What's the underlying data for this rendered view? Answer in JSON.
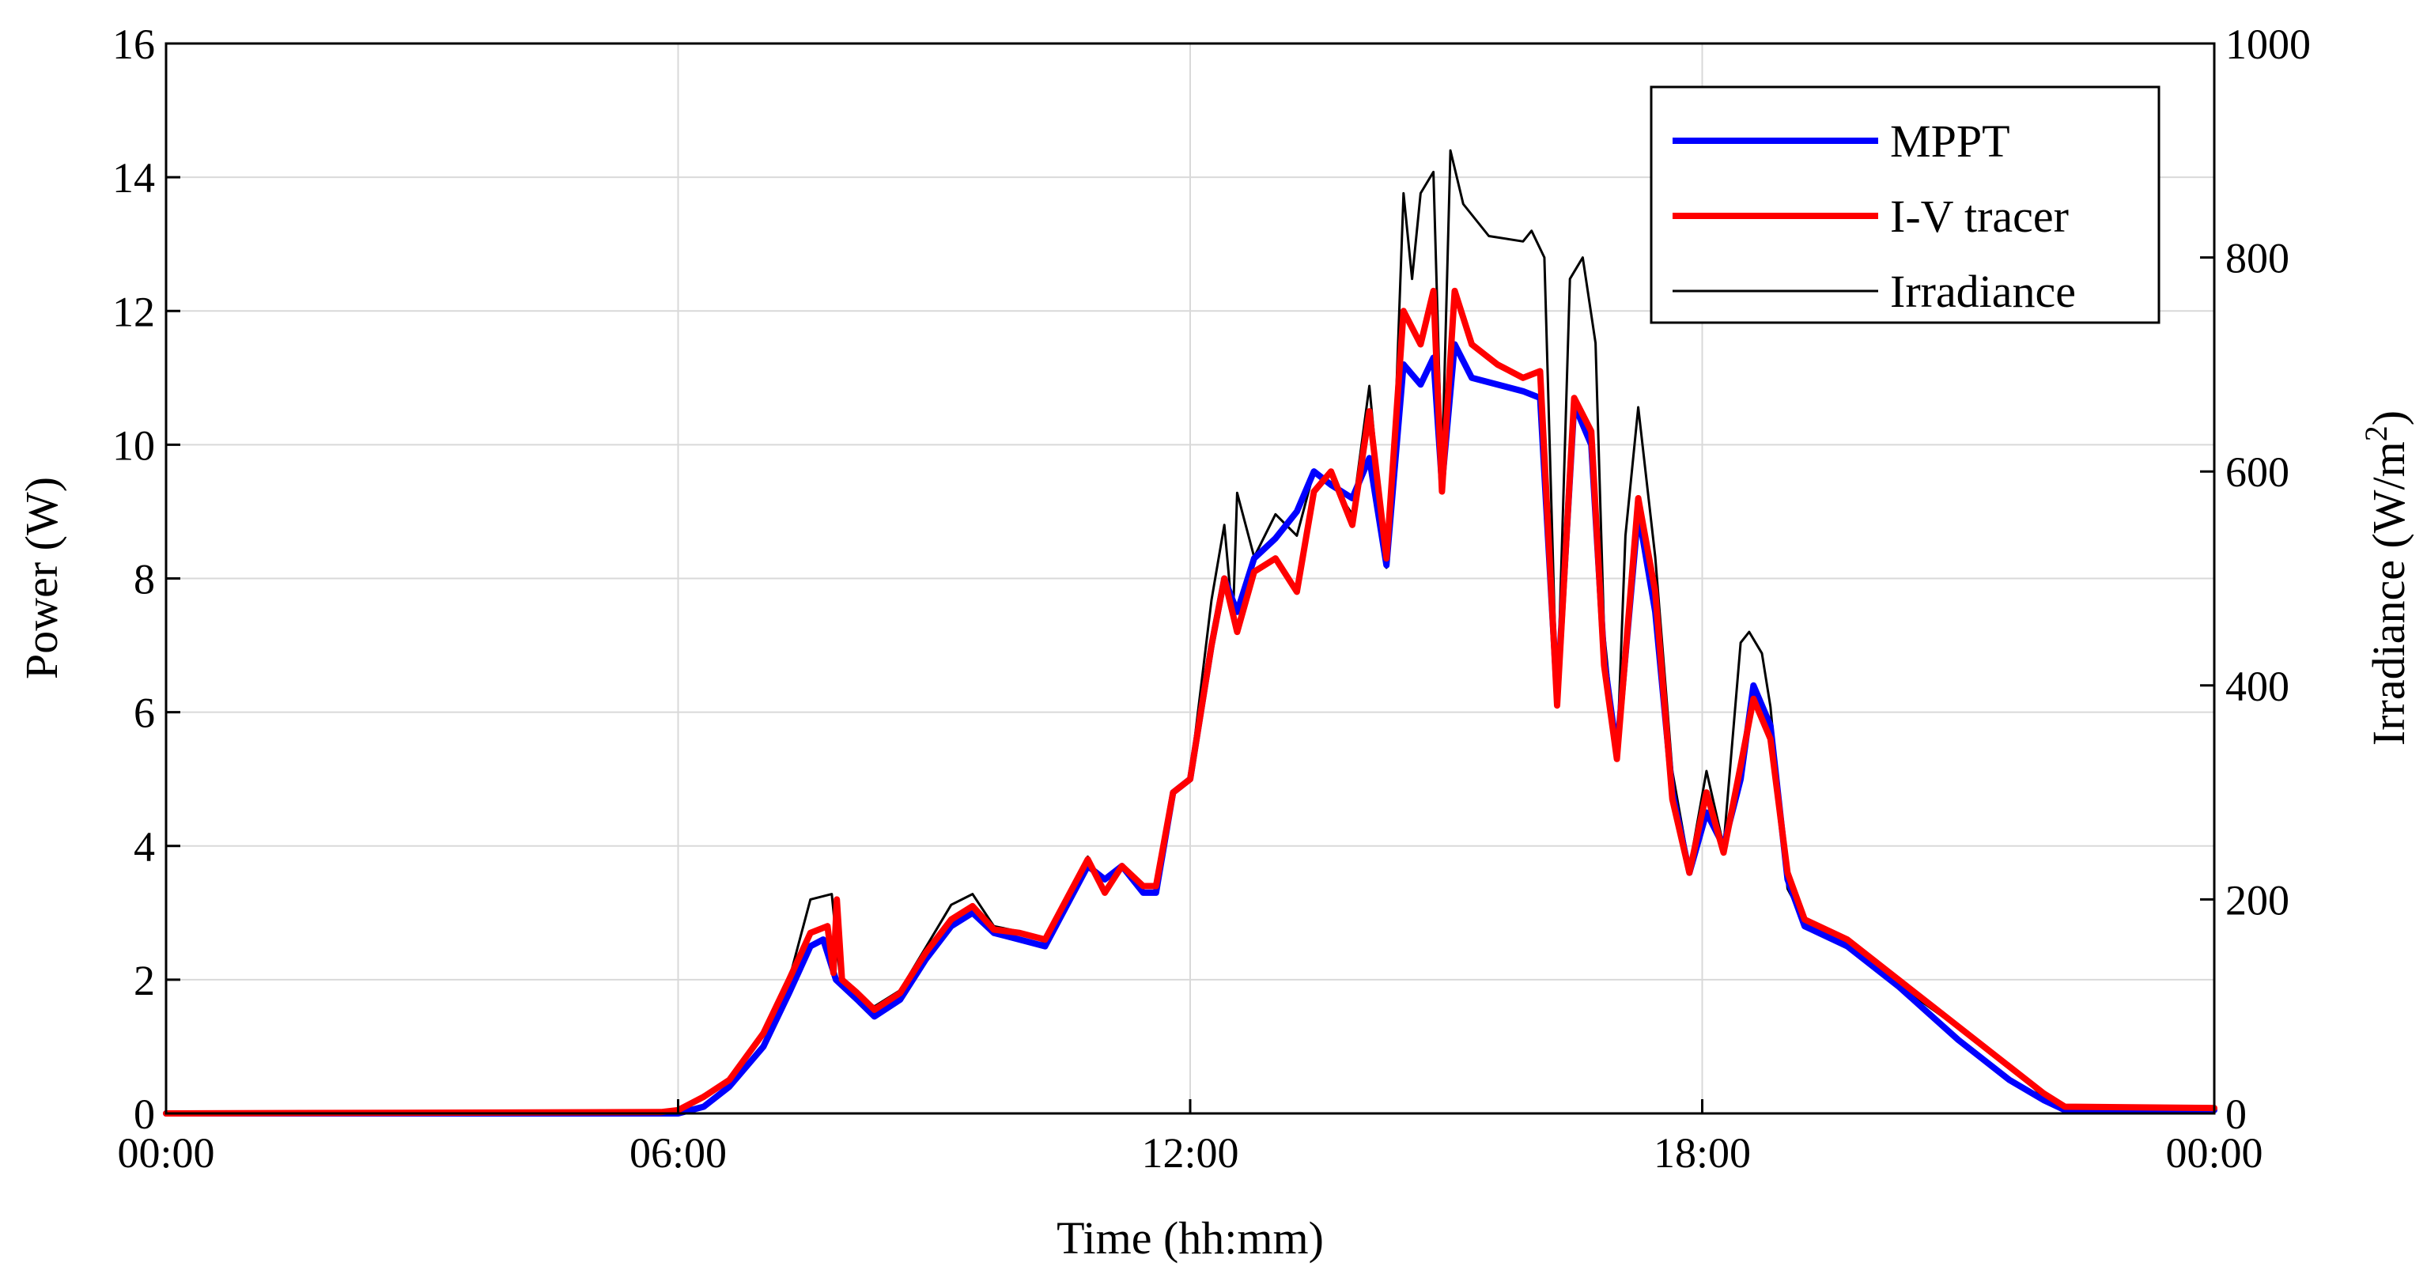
{
  "chart_data": {
    "type": "line",
    "title": "",
    "xlabel": "Time (hh:mm)",
    "ylabel_left": "Power (W)",
    "ylabel_right_base": "Irradiance (W/m",
    "ylabel_right_sup": "2",
    "ylabel_right_close": ")",
    "xlim_hours": [
      0,
      24
    ],
    "x_ticks": [
      {
        "hour": 0,
        "label": "00:00"
      },
      {
        "hour": 6,
        "label": "06:00"
      },
      {
        "hour": 12,
        "label": "12:00"
      },
      {
        "hour": 18,
        "label": "18:00"
      },
      {
        "hour": 24,
        "label": "00:00"
      }
    ],
    "ylim_left": [
      0,
      16
    ],
    "y_ticks_left": [
      "0",
      "2",
      "4",
      "6",
      "8",
      "10",
      "12",
      "14",
      "16"
    ],
    "ylim_right": [
      0,
      1000
    ],
    "y_ticks_right": [
      "0",
      "200",
      "400",
      "600",
      "800",
      "1000"
    ],
    "grid": true,
    "legend_position": "top-right",
    "series": [
      {
        "name": "MPPT",
        "axis": "left",
        "color": "#0000ff",
        "points": [
          [
            0,
            0
          ],
          [
            6,
            0
          ],
          [
            6.3,
            0.1
          ],
          [
            6.6,
            0.4
          ],
          [
            7.0,
            1.0
          ],
          [
            7.3,
            1.8
          ],
          [
            7.55,
            2.5
          ],
          [
            7.7,
            2.6
          ],
          [
            7.85,
            2.0
          ],
          [
            8.1,
            1.7
          ],
          [
            8.3,
            1.45
          ],
          [
            8.6,
            1.7
          ],
          [
            8.9,
            2.3
          ],
          [
            9.2,
            2.8
          ],
          [
            9.45,
            3.0
          ],
          [
            9.7,
            2.7
          ],
          [
            10.0,
            2.6
          ],
          [
            10.3,
            2.5
          ],
          [
            10.55,
            3.1
          ],
          [
            10.8,
            3.7
          ],
          [
            11.0,
            3.5
          ],
          [
            11.2,
            3.7
          ],
          [
            11.45,
            3.3
          ],
          [
            11.6,
            3.3
          ],
          [
            11.8,
            4.8
          ],
          [
            12.0,
            5.0
          ],
          [
            12.25,
            7.0
          ],
          [
            12.4,
            8.0
          ],
          [
            12.55,
            7.5
          ],
          [
            12.75,
            8.3
          ],
          [
            13.0,
            8.6
          ],
          [
            13.25,
            9.0
          ],
          [
            13.45,
            9.6
          ],
          [
            13.65,
            9.4
          ],
          [
            13.9,
            9.2
          ],
          [
            14.1,
            9.8
          ],
          [
            14.3,
            8.2
          ],
          [
            14.5,
            11.2
          ],
          [
            14.7,
            10.9
          ],
          [
            14.85,
            11.3
          ],
          [
            14.95,
            9.4
          ],
          [
            15.1,
            11.5
          ],
          [
            15.3,
            11.0
          ],
          [
            15.6,
            10.9
          ],
          [
            15.9,
            10.8
          ],
          [
            16.1,
            10.7
          ],
          [
            16.3,
            6.2
          ],
          [
            16.5,
            10.6
          ],
          [
            16.7,
            10.0
          ],
          [
            16.85,
            6.8
          ],
          [
            17.0,
            5.4
          ],
          [
            17.25,
            9.0
          ],
          [
            17.45,
            7.5
          ],
          [
            17.65,
            4.8
          ],
          [
            17.85,
            3.6
          ],
          [
            18.05,
            4.5
          ],
          [
            18.25,
            4.0
          ],
          [
            18.45,
            5.0
          ],
          [
            18.6,
            6.4
          ],
          [
            18.8,
            5.8
          ],
          [
            19.0,
            3.5
          ],
          [
            19.2,
            2.8
          ],
          [
            19.7,
            2.5
          ],
          [
            20.3,
            1.9
          ],
          [
            21.0,
            1.1
          ],
          [
            21.6,
            0.5
          ],
          [
            22.0,
            0.2
          ],
          [
            22.25,
            0.05
          ],
          [
            24,
            0.05
          ]
        ]
      },
      {
        "name": "I-V tracer",
        "axis": "left",
        "color": "#ff0000",
        "points": [
          [
            0,
            0
          ],
          [
            5.8,
            0.02
          ],
          [
            6.0,
            0.05
          ],
          [
            6.3,
            0.25
          ],
          [
            6.6,
            0.5
          ],
          [
            7.0,
            1.2
          ],
          [
            7.3,
            2.0
          ],
          [
            7.55,
            2.7
          ],
          [
            7.75,
            2.8
          ],
          [
            7.82,
            2.1
          ],
          [
            7.86,
            3.2
          ],
          [
            7.92,
            2.0
          ],
          [
            8.1,
            1.8
          ],
          [
            8.3,
            1.55
          ],
          [
            8.6,
            1.8
          ],
          [
            8.9,
            2.4
          ],
          [
            9.2,
            2.9
          ],
          [
            9.45,
            3.1
          ],
          [
            9.7,
            2.75
          ],
          [
            10.0,
            2.7
          ],
          [
            10.3,
            2.6
          ],
          [
            10.55,
            3.2
          ],
          [
            10.8,
            3.8
          ],
          [
            11.0,
            3.3
          ],
          [
            11.2,
            3.7
          ],
          [
            11.45,
            3.4
          ],
          [
            11.6,
            3.4
          ],
          [
            11.8,
            4.8
          ],
          [
            12.0,
            5.0
          ],
          [
            12.25,
            7.0
          ],
          [
            12.4,
            8.0
          ],
          [
            12.55,
            7.2
          ],
          [
            12.75,
            8.1
          ],
          [
            13.0,
            8.3
          ],
          [
            13.25,
            7.8
          ],
          [
            13.45,
            9.3
          ],
          [
            13.65,
            9.6
          ],
          [
            13.9,
            8.8
          ],
          [
            14.1,
            10.5
          ],
          [
            14.3,
            8.3
          ],
          [
            14.5,
            12.0
          ],
          [
            14.7,
            11.5
          ],
          [
            14.85,
            12.3
          ],
          [
            14.95,
            9.3
          ],
          [
            15.1,
            12.3
          ],
          [
            15.3,
            11.5
          ],
          [
            15.6,
            11.2
          ],
          [
            15.9,
            11.0
          ],
          [
            16.1,
            11.1
          ],
          [
            16.3,
            6.1
          ],
          [
            16.5,
            10.7
          ],
          [
            16.7,
            10.2
          ],
          [
            16.85,
            6.7
          ],
          [
            17.0,
            5.3
          ],
          [
            17.25,
            9.2
          ],
          [
            17.45,
            7.8
          ],
          [
            17.65,
            4.7
          ],
          [
            17.85,
            3.6
          ],
          [
            18.05,
            4.8
          ],
          [
            18.25,
            3.9
          ],
          [
            18.45,
            5.2
          ],
          [
            18.6,
            6.2
          ],
          [
            18.8,
            5.6
          ],
          [
            19.0,
            3.6
          ],
          [
            19.2,
            2.9
          ],
          [
            19.7,
            2.6
          ],
          [
            20.3,
            2.0
          ],
          [
            21.0,
            1.3
          ],
          [
            21.6,
            0.7
          ],
          [
            22.0,
            0.3
          ],
          [
            22.25,
            0.1
          ],
          [
            24,
            0.08
          ]
        ]
      },
      {
        "name": "Irradiance",
        "axis": "right",
        "color": "#000000",
        "points": [
          [
            0,
            0
          ],
          [
            5.8,
            1
          ],
          [
            6.0,
            4
          ],
          [
            6.3,
            15
          ],
          [
            6.6,
            30
          ],
          [
            7.0,
            75
          ],
          [
            7.3,
            125
          ],
          [
            7.55,
            200
          ],
          [
            7.8,
            205
          ],
          [
            7.9,
            125
          ],
          [
            8.1,
            110
          ],
          [
            8.3,
            100
          ],
          [
            8.6,
            115
          ],
          [
            8.9,
            155
          ],
          [
            9.2,
            195
          ],
          [
            9.45,
            205
          ],
          [
            9.7,
            175
          ],
          [
            10.0,
            170
          ],
          [
            10.3,
            160
          ],
          [
            10.55,
            200
          ],
          [
            10.8,
            240
          ],
          [
            11.0,
            210
          ],
          [
            11.2,
            230
          ],
          [
            11.45,
            205
          ],
          [
            11.6,
            205
          ],
          [
            11.8,
            300
          ],
          [
            12.0,
            315
          ],
          [
            12.25,
            480
          ],
          [
            12.4,
            550
          ],
          [
            12.5,
            460
          ],
          [
            12.55,
            580
          ],
          [
            12.75,
            520
          ],
          [
            13.0,
            560
          ],
          [
            13.25,
            540
          ],
          [
            13.45,
            600
          ],
          [
            13.65,
            590
          ],
          [
            13.9,
            560
          ],
          [
            14.1,
            680
          ],
          [
            14.3,
            510
          ],
          [
            14.4,
            640
          ],
          [
            14.5,
            860
          ],
          [
            14.6,
            780
          ],
          [
            14.7,
            860
          ],
          [
            14.85,
            880
          ],
          [
            14.95,
            600
          ],
          [
            15.05,
            900
          ],
          [
            15.2,
            850
          ],
          [
            15.5,
            820
          ],
          [
            15.9,
            815
          ],
          [
            16.0,
            825
          ],
          [
            16.15,
            800
          ],
          [
            16.3,
            380
          ],
          [
            16.45,
            780
          ],
          [
            16.6,
            800
          ],
          [
            16.75,
            720
          ],
          [
            16.85,
            450
          ],
          [
            17.0,
            330
          ],
          [
            17.1,
            540
          ],
          [
            17.25,
            660
          ],
          [
            17.45,
            520
          ],
          [
            17.65,
            320
          ],
          [
            17.85,
            230
          ],
          [
            18.05,
            320
          ],
          [
            18.25,
            250
          ],
          [
            18.45,
            440
          ],
          [
            18.55,
            450
          ],
          [
            18.7,
            430
          ],
          [
            18.8,
            380
          ],
          [
            19.0,
            210
          ],
          [
            19.2,
            180
          ],
          [
            19.7,
            160
          ],
          [
            20.3,
            120
          ],
          [
            21.0,
            80
          ],
          [
            21.6,
            45
          ],
          [
            22.0,
            15
          ],
          [
            22.25,
            5
          ],
          [
            24,
            3
          ]
        ]
      }
    ]
  }
}
